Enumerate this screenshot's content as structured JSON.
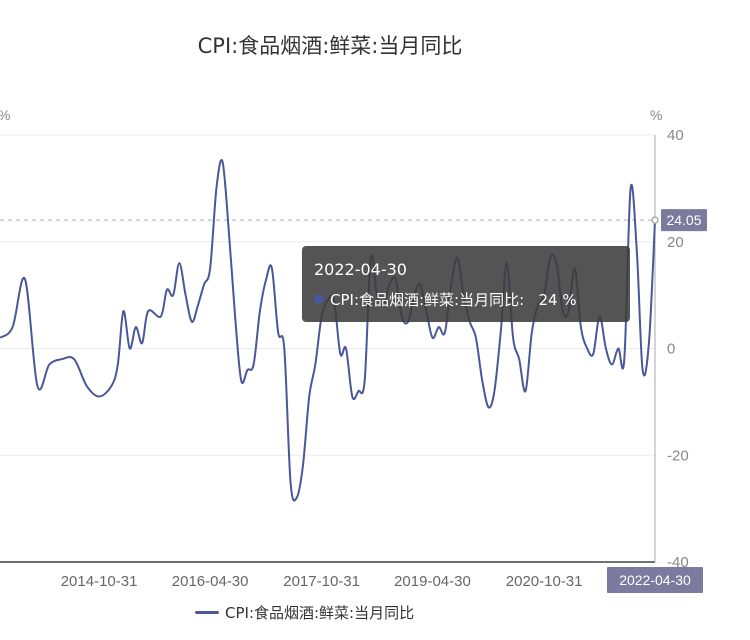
{
  "chart_data": {
    "type": "line",
    "title": "CPI:食品烟酒:鲜菜:当月同比",
    "ylabel_left": "%",
    "ylabel_right": "%",
    "ylim": [
      -40,
      40
    ],
    "yticks": [
      40,
      20,
      0,
      -20,
      -40
    ],
    "x_range": [
      "2013-06-30",
      "2022-04-30"
    ],
    "xticks": [
      "2014-10-31",
      "2016-04-30",
      "2017-10-31",
      "2019-04-30",
      "2020-10-31"
    ],
    "grid": true,
    "legend_position": "bottom",
    "series": [
      {
        "name": "CPI:食品烟酒:鲜菜:当月同比",
        "color": "#4a5799",
        "points": [
          [
            "2013-06-30",
            2
          ],
          [
            "2013-08-31",
            4
          ],
          [
            "2013-10-31",
            13
          ],
          [
            "2013-12-31",
            -7
          ],
          [
            "2014-02-28",
            -3
          ],
          [
            "2014-04-30",
            -2
          ],
          [
            "2014-06-30",
            -2
          ],
          [
            "2014-08-31",
            -7
          ],
          [
            "2014-10-31",
            -9
          ],
          [
            "2014-12-31",
            -7
          ],
          [
            "2015-01-31",
            -3
          ],
          [
            "2015-02-28",
            7
          ],
          [
            "2015-03-31",
            0
          ],
          [
            "2015-04-30",
            4
          ],
          [
            "2015-05-31",
            1
          ],
          [
            "2015-06-30",
            7
          ],
          [
            "2015-08-31",
            6
          ],
          [
            "2015-09-30",
            11
          ],
          [
            "2015-10-31",
            10
          ],
          [
            "2015-11-30",
            16
          ],
          [
            "2015-12-31",
            10
          ],
          [
            "2016-01-31",
            5
          ],
          [
            "2016-02-29",
            8
          ],
          [
            "2016-03-31",
            12
          ],
          [
            "2016-04-30",
            15
          ],
          [
            "2016-05-31",
            30
          ],
          [
            "2016-06-30",
            35
          ],
          [
            "2016-07-31",
            22
          ],
          [
            "2016-08-31",
            6
          ],
          [
            "2016-09-30",
            -6
          ],
          [
            "2016-10-31",
            -4
          ],
          [
            "2016-11-30",
            -3
          ],
          [
            "2016-12-31",
            7
          ],
          [
            "2017-01-31",
            13
          ],
          [
            "2017-02-28",
            15
          ],
          [
            "2017-03-31",
            3
          ],
          [
            "2017-04-30",
            0
          ],
          [
            "2017-05-31",
            -25
          ],
          [
            "2017-06-30",
            -28
          ],
          [
            "2017-07-31",
            -22
          ],
          [
            "2017-08-31",
            -9
          ],
          [
            "2017-09-30",
            -3
          ],
          [
            "2017-10-31",
            6
          ],
          [
            "2017-11-30",
            9
          ],
          [
            "2017-12-31",
            9
          ],
          [
            "2018-01-31",
            -1
          ],
          [
            "2018-02-28",
            0
          ],
          [
            "2018-03-31",
            -9
          ],
          [
            "2018-04-30",
            -8
          ],
          [
            "2018-05-31",
            -6
          ],
          [
            "2018-06-30",
            17
          ],
          [
            "2018-07-31",
            10
          ],
          [
            "2018-08-31",
            8
          ],
          [
            "2018-09-30",
            12
          ],
          [
            "2018-10-31",
            13
          ],
          [
            "2018-11-30",
            6
          ],
          [
            "2018-12-31",
            5
          ],
          [
            "2019-01-31",
            10
          ],
          [
            "2019-02-28",
            12
          ],
          [
            "2019-03-31",
            7
          ],
          [
            "2019-04-30",
            2
          ],
          [
            "2019-05-31",
            4
          ],
          [
            "2019-06-30",
            3
          ],
          [
            "2019-07-31",
            12
          ],
          [
            "2019-08-31",
            17
          ],
          [
            "2019-09-30",
            10
          ],
          [
            "2019-10-31",
            5
          ],
          [
            "2019-11-30",
            2
          ],
          [
            "2019-12-31",
            -6
          ],
          [
            "2020-01-31",
            -11
          ],
          [
            "2020-02-29",
            -8
          ],
          [
            "2020-03-31",
            3
          ],
          [
            "2020-04-30",
            16
          ],
          [
            "2020-05-31",
            2
          ],
          [
            "2020-06-30",
            -2
          ],
          [
            "2020-07-31",
            -8
          ],
          [
            "2020-08-31",
            3
          ],
          [
            "2020-09-30",
            8
          ],
          [
            "2020-10-31",
            10
          ],
          [
            "2020-11-30",
            17
          ],
          [
            "2020-12-31",
            16
          ],
          [
            "2021-01-31",
            7
          ],
          [
            "2021-02-28",
            7
          ],
          [
            "2021-03-31",
            15
          ],
          [
            "2021-04-30",
            4
          ],
          [
            "2021-05-31",
            0
          ],
          [
            "2021-06-30",
            -1
          ],
          [
            "2021-07-31",
            6
          ],
          [
            "2021-08-31",
            0
          ],
          [
            "2021-09-30",
            -3
          ],
          [
            "2021-10-31",
            0
          ],
          [
            "2021-11-30",
            -2
          ],
          [
            "2021-12-31",
            30
          ],
          [
            "2022-01-31",
            18
          ],
          [
            "2022-02-28",
            -4
          ],
          [
            "2022-03-31",
            1
          ],
          [
            "2022-04-30",
            24.05
          ]
        ]
      }
    ],
    "reference_line": {
      "value": 24.05,
      "label": "24.05"
    },
    "crosshair_x_label": "2022-04-30"
  },
  "tooltip": {
    "date": "2022-04-30",
    "series_label": "CPI:食品烟酒:鲜菜:当月同比:",
    "value": "24 %"
  }
}
